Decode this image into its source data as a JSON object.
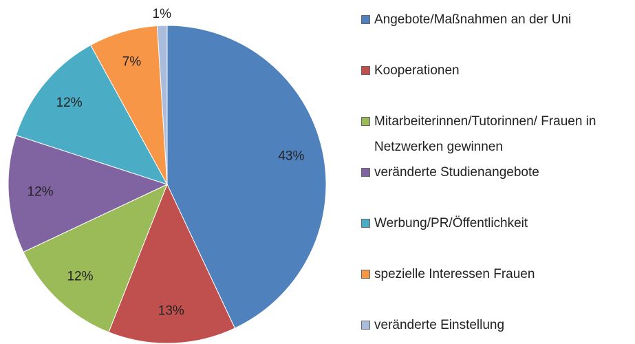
{
  "chart_data": {
    "type": "pie",
    "categories": [
      "Angebote/Maßnahmen an der Uni",
      "Kooperationen",
      "Mitarbeiterinnen/Tutorinnen/ Frauen in Netzwerken gewinnen",
      "veränderte Studienangebote",
      "Werbung/PR/Öffentlichkeit",
      "spezielle Interessen Frauen",
      "veränderte Einstellung"
    ],
    "values": [
      43,
      13,
      12,
      12,
      12,
      7,
      1
    ],
    "value_labels": [
      "43%",
      "13%",
      "12%",
      "12%",
      "12%",
      "7%",
      "1%"
    ],
    "colors": [
      "#4f81bd",
      "#c0504d",
      "#9bbb59",
      "#8064a2",
      "#4bacc6",
      "#f79646",
      "#a9bcdc"
    ],
    "legend": "right"
  }
}
